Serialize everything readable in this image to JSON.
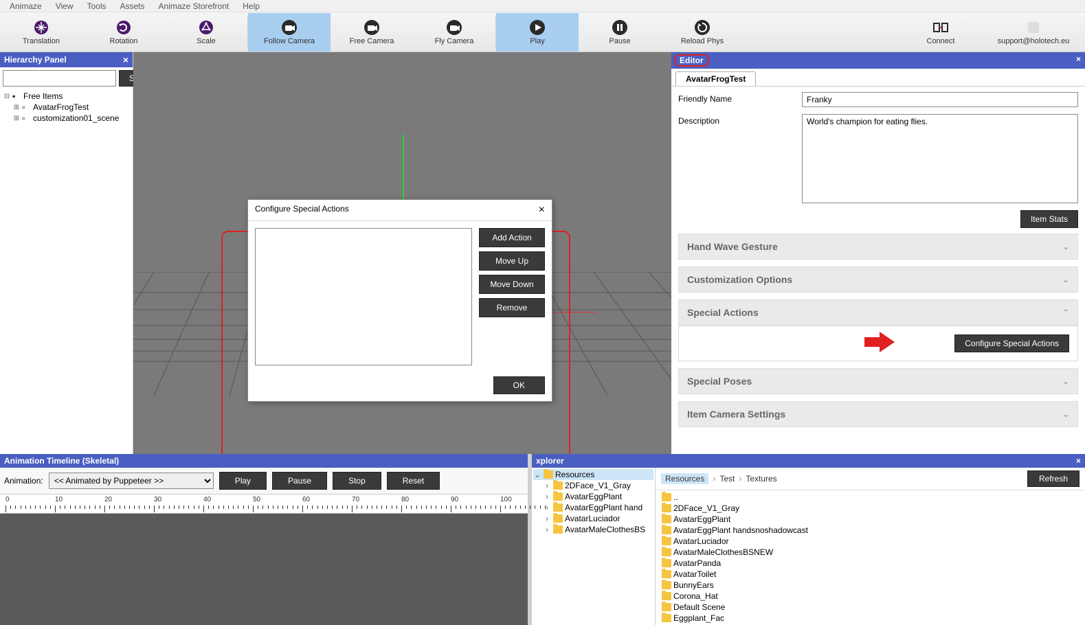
{
  "menu": [
    "Animaze",
    "View",
    "Tools",
    "Assets",
    "Animaze Storefront",
    "Help"
  ],
  "toolbar": {
    "items": [
      {
        "label": "Translation",
        "active": false,
        "icon": "translation"
      },
      {
        "label": "Rotation",
        "active": false,
        "icon": "rotation"
      },
      {
        "label": "Scale",
        "active": false,
        "icon": "scale"
      },
      {
        "label": "Follow Camera",
        "active": true,
        "icon": "camera"
      },
      {
        "label": "Free Camera",
        "active": false,
        "icon": "camera"
      },
      {
        "label": "Fly Camera",
        "active": false,
        "icon": "camera"
      },
      {
        "label": "Play",
        "active": true,
        "icon": "play"
      },
      {
        "label": "Pause",
        "active": false,
        "icon": "pause"
      },
      {
        "label": "Reload Phys",
        "active": false,
        "icon": "reload"
      }
    ],
    "connect": "Connect",
    "support": "support@holotech.eu"
  },
  "hierarchy": {
    "title": "Hierarchy Panel",
    "search_btn": "Search",
    "root": "Free Items",
    "items": [
      "AvatarFrogTest",
      "customization01_scene"
    ]
  },
  "editor": {
    "title": "Editor",
    "tab": "AvatarFrogTest",
    "friendly_name_label": "Friendly Name",
    "friendly_name": "Franky",
    "description_label": "Description",
    "description": "World's champion for eating flies.",
    "item_stats": "Item Stats",
    "sections": [
      "Hand Wave Gesture",
      "Customization Options",
      "Special Actions",
      "Special Poses",
      "Item Camera Settings"
    ],
    "configure_btn": "Configure Special Actions"
  },
  "dialog": {
    "title": "Configure Special Actions",
    "add": "Add Action",
    "up": "Move Up",
    "down": "Move Down",
    "remove": "Remove",
    "ok": "OK"
  },
  "timeline": {
    "title": "Animation Timeline (Skeletal)",
    "anim_label": "Animation:",
    "anim_value": "<< Animated by Puppeteer >>",
    "play": "Play",
    "pause": "Pause",
    "stop": "Stop",
    "reset": "Reset",
    "ticks": [
      0,
      10,
      20,
      30,
      40,
      50,
      60,
      70,
      80,
      90,
      100
    ]
  },
  "explorer": {
    "title": "xplorer",
    "tree_root": "Resources",
    "tree_items": [
      "2DFace_V1_Gray",
      "AvatarEggPlant",
      "AvatarEggPlant hand",
      "AvatarLuciador",
      "AvatarMaleClothesBS"
    ],
    "breadcrumb": [
      "Resources",
      "Test",
      "Textures"
    ],
    "refresh": "Refresh",
    "files_col1": [
      "..",
      "2DFace_V1_Gray",
      "AvatarEggPlant",
      "AvatarEggPlant handsnoshadowcast"
    ],
    "files_col2": [
      "AvatarLuciador",
      "AvatarMaleClothesBSNEW",
      "AvatarPanda",
      "AvatarToilet"
    ],
    "files_col3": [
      "BunnyEars",
      "Corona_Hat",
      "Default Scene",
      "Eggplant_Fac"
    ]
  }
}
